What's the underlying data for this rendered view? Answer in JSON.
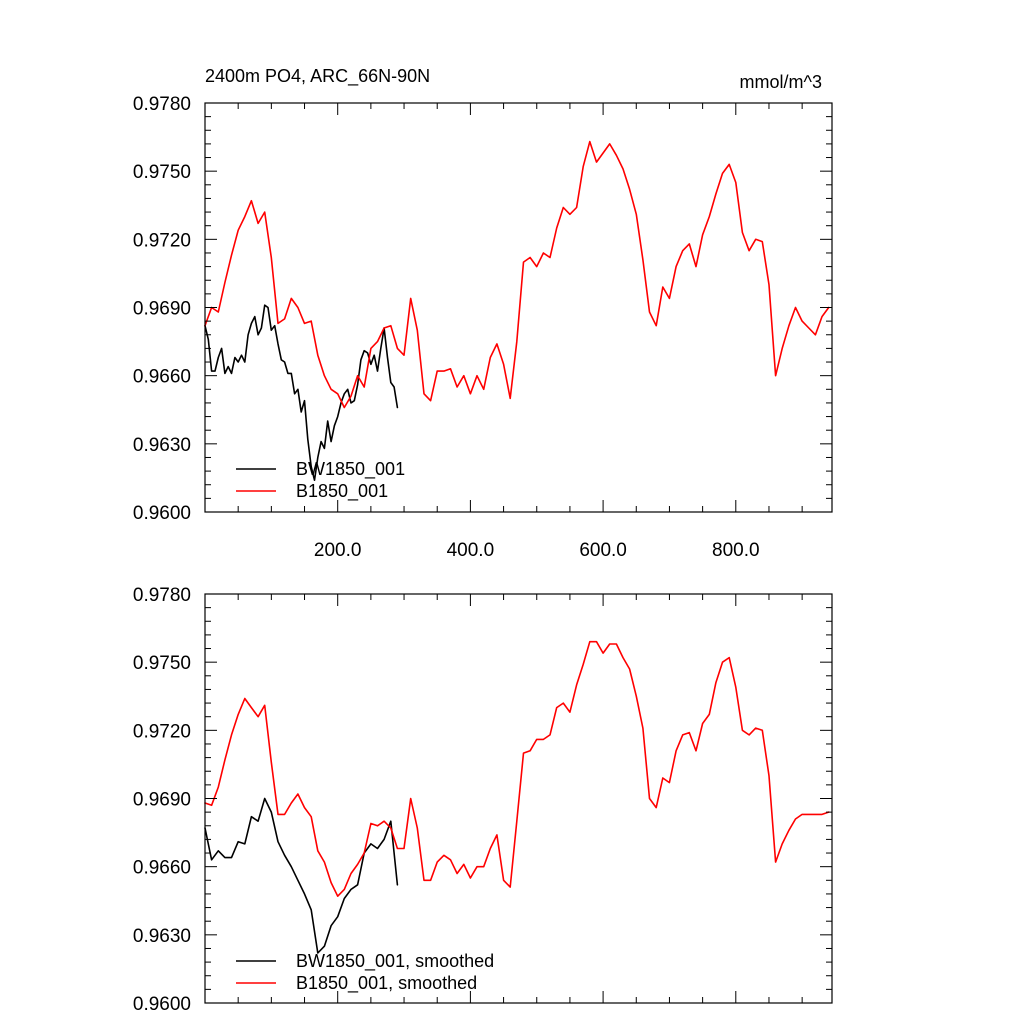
{
  "chart_data": [
    {
      "type": "line",
      "title": "2400m PO4, ARC_66N-90N",
      "units": "mmol/m^3",
      "xlabel": "",
      "ylabel": "",
      "xlim": [
        0,
        945
      ],
      "ylim": [
        0.96,
        0.978
      ],
      "x_tick_values": [
        200,
        400,
        600,
        800
      ],
      "x_ticks": [
        "200.0",
        "400.0",
        "600.0",
        "800.0"
      ],
      "y_tick_values": [
        0.96,
        0.963,
        0.966,
        0.969,
        0.972,
        0.975,
        0.978
      ],
      "y_ticks": [
        "0.9600",
        "0.9630",
        "0.9660",
        "0.9690",
        "0.9720",
        "0.9750",
        "0.9780"
      ],
      "grid": false,
      "legend_position": "bottom-left",
      "series": [
        {
          "name": "BW1850_001",
          "color": "#000000",
          "x": [
            0,
            5,
            10,
            15,
            20,
            25,
            30,
            35,
            40,
            45,
            50,
            55,
            60,
            65,
            70,
            75,
            80,
            85,
            90,
            95,
            100,
            105,
            110,
            115,
            120,
            125,
            130,
            135,
            140,
            145,
            150,
            155,
            160,
            165,
            170,
            175,
            180,
            185,
            190,
            195,
            200,
            205,
            210,
            215,
            220,
            225,
            230,
            235,
            240,
            245,
            250,
            255,
            260,
            265,
            270,
            275,
            280,
            285,
            290
          ],
          "values": [
            0.9682,
            0.9676,
            0.9662,
            0.9662,
            0.9668,
            0.9672,
            0.9661,
            0.9664,
            0.9661,
            0.9668,
            0.9666,
            0.9669,
            0.9666,
            0.9678,
            0.9683,
            0.9686,
            0.9678,
            0.9681,
            0.9691,
            0.969,
            0.968,
            0.9682,
            0.9674,
            0.9667,
            0.9666,
            0.9661,
            0.9661,
            0.9652,
            0.9654,
            0.9644,
            0.9649,
            0.9632,
            0.962,
            0.9614,
            0.9624,
            0.9631,
            0.9628,
            0.964,
            0.9631,
            0.9638,
            0.9642,
            0.9648,
            0.9652,
            0.9654,
            0.9648,
            0.9649,
            0.9656,
            0.9667,
            0.9671,
            0.967,
            0.9665,
            0.9669,
            0.9662,
            0.9672,
            0.9681,
            0.9668,
            0.9657,
            0.9655,
            0.9646
          ]
        },
        {
          "name": "B1850_001",
          "color": "#ff0000",
          "x": [
            0,
            10,
            20,
            30,
            40,
            50,
            60,
            70,
            80,
            90,
            100,
            110,
            120,
            130,
            140,
            150,
            160,
            170,
            180,
            190,
            200,
            210,
            220,
            230,
            240,
            250,
            260,
            270,
            280,
            290,
            300,
            310,
            320,
            330,
            340,
            350,
            360,
            370,
            380,
            390,
            400,
            410,
            420,
            430,
            440,
            450,
            460,
            470,
            480,
            490,
            500,
            510,
            520,
            530,
            540,
            550,
            560,
            570,
            580,
            590,
            600,
            610,
            620,
            630,
            640,
            650,
            660,
            670,
            680,
            690,
            700,
            710,
            720,
            730,
            740,
            750,
            760,
            770,
            780,
            790,
            800,
            810,
            820,
            830,
            840,
            850,
            860,
            870,
            880,
            890,
            900,
            910,
            920,
            930,
            940
          ],
          "values": [
            0.9682,
            0.969,
            0.9688,
            0.9701,
            0.9713,
            0.9724,
            0.973,
            0.9737,
            0.9727,
            0.9732,
            0.9712,
            0.9683,
            0.9685,
            0.9694,
            0.969,
            0.9683,
            0.9684,
            0.9669,
            0.966,
            0.9654,
            0.9652,
            0.9646,
            0.9651,
            0.966,
            0.9655,
            0.9672,
            0.9675,
            0.9681,
            0.9682,
            0.9672,
            0.9669,
            0.9694,
            0.968,
            0.9652,
            0.9649,
            0.9662,
            0.9662,
            0.9663,
            0.9655,
            0.966,
            0.9652,
            0.966,
            0.9654,
            0.9668,
            0.9674,
            0.9665,
            0.965,
            0.9675,
            0.971,
            0.9712,
            0.9708,
            0.9714,
            0.9712,
            0.9725,
            0.9734,
            0.9731,
            0.9734,
            0.9752,
            0.9763,
            0.9754,
            0.9758,
            0.9762,
            0.9757,
            0.9751,
            0.9742,
            0.9731,
            0.9711,
            0.9688,
            0.9682,
            0.9699,
            0.9694,
            0.9708,
            0.9715,
            0.9718,
            0.9708,
            0.9722,
            0.973,
            0.974,
            0.9749,
            0.9753,
            0.9745,
            0.9723,
            0.9715,
            0.972,
            0.9719,
            0.97,
            0.966,
            0.9672,
            0.9682,
            0.969,
            0.9684,
            0.9681,
            0.9678,
            0.9686,
            0.969
          ]
        }
      ]
    },
    {
      "type": "line",
      "title": "",
      "xlabel": "",
      "ylabel": "",
      "xlim": [
        0,
        945
      ],
      "ylim": [
        0.96,
        0.978
      ],
      "x_tick_values": [
        200,
        400,
        600,
        800
      ],
      "y_tick_values": [
        0.96,
        0.963,
        0.966,
        0.969,
        0.972,
        0.975,
        0.978
      ],
      "y_ticks": [
        "0.9600",
        "0.9630",
        "0.9660",
        "0.9690",
        "0.9720",
        "0.9750",
        "0.9780"
      ],
      "grid": false,
      "legend_position": "bottom-left",
      "series": [
        {
          "name": "BW1850_001, smoothed",
          "color": "#000000",
          "x": [
            0,
            10,
            20,
            30,
            40,
            50,
            60,
            70,
            80,
            90,
            100,
            110,
            120,
            130,
            140,
            150,
            160,
            170,
            180,
            190,
            200,
            210,
            220,
            230,
            240,
            250,
            260,
            270,
            280,
            290
          ],
          "values": [
            0.9677,
            0.9663,
            0.9667,
            0.9664,
            0.9664,
            0.9671,
            0.967,
            0.9682,
            0.968,
            0.969,
            0.9684,
            0.9671,
            0.9665,
            0.966,
            0.9654,
            0.9648,
            0.9641,
            0.9622,
            0.9625,
            0.9634,
            0.9638,
            0.9646,
            0.965,
            0.9652,
            0.9666,
            0.967,
            0.9668,
            0.9672,
            0.968,
            0.9652
          ]
        },
        {
          "name": "B1850_001, smoothed",
          "color": "#ff0000",
          "x": [
            0,
            10,
            20,
            30,
            40,
            50,
            60,
            70,
            80,
            90,
            100,
            110,
            120,
            130,
            140,
            150,
            160,
            170,
            180,
            190,
            200,
            210,
            220,
            230,
            240,
            250,
            260,
            270,
            280,
            290,
            300,
            310,
            320,
            330,
            340,
            350,
            360,
            370,
            380,
            390,
            400,
            410,
            420,
            430,
            440,
            450,
            460,
            470,
            480,
            490,
            500,
            510,
            520,
            530,
            540,
            550,
            560,
            570,
            580,
            590,
            600,
            610,
            620,
            630,
            640,
            650,
            660,
            670,
            680,
            690,
            700,
            710,
            720,
            730,
            740,
            750,
            760,
            770,
            780,
            790,
            800,
            810,
            820,
            830,
            840,
            850,
            860,
            870,
            880,
            890,
            900,
            910,
            920,
            930,
            940
          ],
          "values": [
            0.9688,
            0.9687,
            0.9695,
            0.9707,
            0.9718,
            0.9727,
            0.9734,
            0.973,
            0.9726,
            0.9731,
            0.9706,
            0.9683,
            0.9683,
            0.9688,
            0.9692,
            0.9686,
            0.9682,
            0.9667,
            0.9662,
            0.9653,
            0.9647,
            0.965,
            0.9657,
            0.9661,
            0.9666,
            0.9679,
            0.9678,
            0.968,
            0.9677,
            0.9668,
            0.9668,
            0.969,
            0.9677,
            0.9654,
            0.9654,
            0.9662,
            0.9665,
            0.9663,
            0.9657,
            0.9661,
            0.9655,
            0.966,
            0.966,
            0.9668,
            0.9674,
            0.9654,
            0.9651,
            0.968,
            0.971,
            0.9711,
            0.9716,
            0.9716,
            0.9718,
            0.973,
            0.9732,
            0.9728,
            0.974,
            0.9749,
            0.9759,
            0.9759,
            0.9754,
            0.9758,
            0.9758,
            0.9752,
            0.9747,
            0.9735,
            0.9721,
            0.969,
            0.9686,
            0.9699,
            0.9697,
            0.9711,
            0.9718,
            0.9719,
            0.9711,
            0.9723,
            0.9727,
            0.9741,
            0.975,
            0.9752,
            0.9739,
            0.972,
            0.9718,
            0.9721,
            0.972,
            0.97,
            0.9662,
            0.967,
            0.9676,
            0.9681,
            0.9683,
            0.9683,
            0.9683,
            0.9683,
            0.9684
          ]
        }
      ]
    }
  ]
}
